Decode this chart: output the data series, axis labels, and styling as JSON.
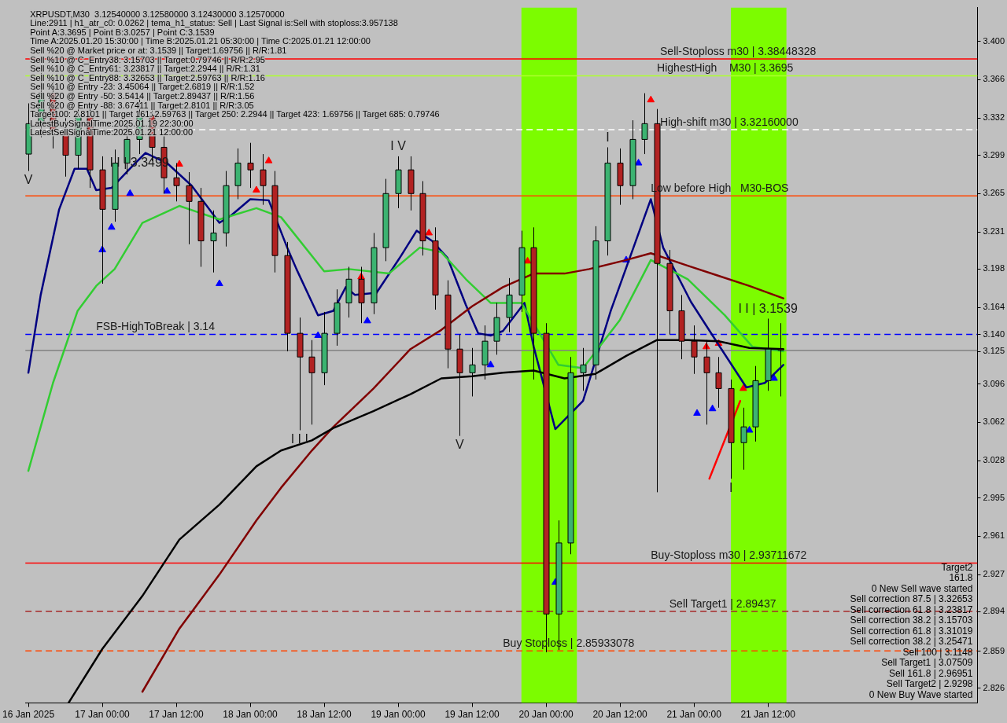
{
  "chart_data": {
    "type": "candlestick",
    "x": [
      "2025-01-16T12:00",
      "2025-01-16T14:00",
      "2025-01-16T16:00",
      "2025-01-16T18:00",
      "2025-01-16T20:00",
      "2025-01-16T22:00",
      "2025-01-17T00:00",
      "2025-01-17T02:00",
      "2025-01-17T04:00",
      "2025-01-17T06:00",
      "2025-01-17T08:00",
      "2025-01-17T10:00",
      "2025-01-17T12:00",
      "2025-01-17T14:00",
      "2025-01-17T16:00",
      "2025-01-17T18:00",
      "2025-01-17T20:00",
      "2025-01-17T22:00",
      "2025-01-18T00:00",
      "2025-01-18T02:00",
      "2025-01-18T04:00",
      "2025-01-18T06:00",
      "2025-01-18T08:00",
      "2025-01-18T10:00",
      "2025-01-18T12:00",
      "2025-01-18T14:00",
      "2025-01-18T16:00",
      "2025-01-18T18:00",
      "2025-01-18T20:00",
      "2025-01-18T22:00",
      "2025-01-19T00:00",
      "2025-01-19T02:00",
      "2025-01-19T04:00",
      "2025-01-19T06:00",
      "2025-01-19T08:00",
      "2025-01-19T10:00",
      "2025-01-19T12:00",
      "2025-01-19T14:00",
      "2025-01-19T16:00",
      "2025-01-19T18:00",
      "2025-01-19T20:00",
      "2025-01-19T22:00",
      "2025-01-20T00:00",
      "2025-01-20T02:00",
      "2025-01-20T04:00",
      "2025-01-20T06:00",
      "2025-01-20T08:00",
      "2025-01-20T10:00",
      "2025-01-20T12:00",
      "2025-01-20T14:00",
      "2025-01-20T16:00",
      "2025-01-20T18:00",
      "2025-01-20T20:00",
      "2025-01-20T22:00",
      "2025-01-21T00:00",
      "2025-01-21T02:00",
      "2025-01-21T04:00",
      "2025-01-21T06:00",
      "2025-01-21T08:00",
      "2025-01-21T10:00",
      "2025-01-21T12:00",
      "2025-01-21T14:00"
    ],
    "ohlc": [
      [
        3.3,
        3.345,
        3.285,
        3.327
      ],
      [
        3.327,
        3.372,
        3.315,
        3.354
      ],
      [
        3.354,
        3.366,
        3.305,
        3.32
      ],
      [
        3.32,
        3.332,
        3.28,
        3.299
      ],
      [
        3.299,
        3.346,
        3.287,
        3.334
      ],
      [
        3.334,
        3.345,
        3.27,
        3.286
      ],
      [
        3.286,
        3.298,
        3.185,
        3.251
      ],
      [
        3.251,
        3.304,
        3.24,
        3.292
      ],
      [
        3.292,
        3.326,
        3.282,
        3.313
      ],
      [
        3.313,
        3.35,
        3.3,
        3.334
      ],
      [
        3.334,
        3.346,
        3.294,
        3.306
      ],
      [
        3.306,
        3.318,
        3.265,
        3.279
      ],
      [
        3.279,
        3.292,
        3.258,
        3.272
      ],
      [
        3.272,
        3.284,
        3.22,
        3.258
      ],
      [
        3.258,
        3.27,
        3.2,
        3.223
      ],
      [
        3.223,
        3.25,
        3.195,
        3.23
      ],
      [
        3.23,
        3.285,
        3.218,
        3.272
      ],
      [
        3.272,
        3.305,
        3.26,
        3.292
      ],
      [
        3.292,
        3.31,
        3.27,
        3.286
      ],
      [
        3.286,
        3.3,
        3.255,
        3.272
      ],
      [
        3.272,
        3.285,
        3.195,
        3.21
      ],
      [
        3.21,
        3.222,
        3.125,
        3.141
      ],
      [
        3.141,
        3.155,
        3.055,
        3.12
      ],
      [
        3.12,
        3.135,
        3.06,
        3.106
      ],
      [
        3.106,
        3.16,
        3.095,
        3.141
      ],
      [
        3.141,
        3.18,
        3.13,
        3.168
      ],
      [
        3.168,
        3.2,
        3.155,
        3.189
      ],
      [
        3.189,
        3.2,
        3.15,
        3.168
      ],
      [
        3.168,
        3.23,
        3.158,
        3.217
      ],
      [
        3.217,
        3.278,
        3.205,
        3.265
      ],
      [
        3.265,
        3.298,
        3.252,
        3.286
      ],
      [
        3.286,
        3.298,
        3.25,
        3.265
      ],
      [
        3.265,
        3.276,
        3.21,
        3.223
      ],
      [
        3.223,
        3.235,
        3.162,
        3.175
      ],
      [
        3.175,
        3.188,
        3.11,
        3.127
      ],
      [
        3.127,
        3.14,
        3.05,
        3.106
      ],
      [
        3.106,
        3.128,
        3.085,
        3.113
      ],
      [
        3.113,
        3.148,
        3.1,
        3.134
      ],
      [
        3.134,
        3.168,
        3.122,
        3.155
      ],
      [
        3.155,
        3.19,
        3.142,
        3.175
      ],
      [
        3.175,
        3.232,
        3.16,
        3.217
      ],
      [
        3.217,
        3.235,
        3.1,
        3.141
      ],
      [
        3.141,
        3.15,
        2.858,
        2.892
      ],
      [
        2.892,
        2.975,
        2.86,
        2.955
      ],
      [
        2.955,
        3.12,
        2.945,
        3.106
      ],
      [
        3.106,
        3.128,
        3.09,
        3.113
      ],
      [
        3.113,
        3.236,
        3.1,
        3.223
      ],
      [
        3.223,
        3.306,
        3.21,
        3.292
      ],
      [
        3.292,
        3.305,
        3.255,
        3.272
      ],
      [
        3.272,
        3.33,
        3.26,
        3.313
      ],
      [
        3.313,
        3.354,
        3.3,
        3.327
      ],
      [
        3.327,
        3.34,
        3.0,
        3.203
      ],
      [
        3.203,
        3.215,
        3.14,
        3.161
      ],
      [
        3.161,
        3.175,
        3.118,
        3.134
      ],
      [
        3.134,
        3.148,
        3.105,
        3.12
      ],
      [
        3.12,
        3.135,
        3.06,
        3.106
      ],
      [
        3.106,
        3.12,
        3.075,
        3.092
      ],
      [
        3.092,
        3.1,
        3.012,
        3.044
      ],
      [
        3.044,
        3.075,
        3.02,
        3.058
      ],
      [
        3.058,
        3.112,
        3.045,
        3.099
      ],
      [
        3.099,
        3.154,
        3.09,
        3.127
      ],
      [
        3.127,
        3.15,
        3.085,
        3.126
      ]
    ],
    "colors": [
      "#3cb371",
      "#3cb371",
      "#b22222",
      "#b22222",
      "#3cb371",
      "#b22222",
      "#b22222",
      "#3cb371",
      "#3cb371",
      "#3cb371",
      "#b22222",
      "#b22222",
      "#b22222",
      "#b22222",
      "#b22222",
      "#3cb371",
      "#3cb371",
      "#3cb371",
      "#b22222",
      "#b22222",
      "#b22222",
      "#b22222",
      "#b22222",
      "#b22222",
      "#3cb371",
      "#3cb371",
      "#3cb371",
      "#b22222",
      "#3cb371",
      "#3cb371",
      "#3cb371",
      "#b22222",
      "#b22222",
      "#b22222",
      "#b22222",
      "#b22222",
      "#3cb371",
      "#3cb371",
      "#3cb371",
      "#3cb371",
      "#3cb371",
      "#b22222",
      "#b22222",
      "#3cb371",
      "#3cb371",
      "#3cb371",
      "#3cb371",
      "#3cb371",
      "#b22222",
      "#3cb371",
      "#3cb371",
      "#b22222",
      "#b22222",
      "#b22222",
      "#b22222",
      "#b22222",
      "#b22222",
      "#b22222",
      "#3cb371",
      "#3cb371",
      "#3cb371",
      "#b22222"
    ],
    "series": [
      {
        "type": "line",
        "color": "#000000",
        "x": [
          "2025-01-16T18:30",
          "2025-01-17T00:00",
          "2025-01-17T06:30",
          "2025-01-17T12:30",
          "2025-01-17T19:00",
          "2025-01-18T01:00",
          "2025-01-18T05:00",
          "2025-01-18T10:00",
          "2025-01-18T13:30",
          "2025-01-18T20:00",
          "2025-01-19T02:00",
          "2025-01-19T07:00",
          "2025-01-19T12:00",
          "2025-01-19T17:00",
          "2025-01-19T22:00",
          "2025-01-20T03:00",
          "2025-01-20T08:00",
          "2025-01-20T13:00",
          "2025-01-20T18:00",
          "2025-01-20T23:00",
          "2025-01-21T04:00",
          "2025-01-21T09:00",
          "2025-01-21T14:30"
        ],
        "values": [
          2.813,
          2.861,
          2.908,
          2.958,
          2.989,
          3.023,
          3.037,
          3.046,
          3.057,
          3.072,
          3.087,
          3.101,
          3.103,
          3.106,
          3.108,
          3.101,
          3.105,
          3.121,
          3.135,
          3.135,
          3.134,
          3.128,
          3.127
        ]
      },
      {
        "type": "line",
        "color": "#800000",
        "x": [
          "2025-01-17T06:30",
          "2025-01-17T12:30",
          "2025-01-17T19:00",
          "2025-01-18T01:00",
          "2025-01-18T05:00",
          "2025-01-18T10:00",
          "2025-01-18T13:30",
          "2025-01-18T20:00",
          "2025-01-19T02:00",
          "2025-01-19T07:00",
          "2025-01-19T12:00",
          "2025-01-19T17:00",
          "2025-01-19T22:00",
          "2025-01-20T03:00",
          "2025-01-20T07:00",
          "2025-01-20T13:00",
          "2025-01-20T17:00",
          "2025-01-20T23:00",
          "2025-01-21T04:00",
          "2025-01-21T09:00",
          "2025-01-21T14:30"
        ],
        "values": [
          2.823,
          2.879,
          2.927,
          2.975,
          3.004,
          3.037,
          3.058,
          3.092,
          3.127,
          3.144,
          3.165,
          3.182,
          3.194,
          3.194,
          3.198,
          3.206,
          3.212,
          3.201,
          3.192,
          3.183,
          3.172
        ]
      },
      {
        "type": "line",
        "color": "#32cd32",
        "x": [
          "2025-01-16T12:00",
          "2025-01-16T16:00",
          "2025-01-16T20:00",
          "2025-01-16T23:00",
          "2025-01-17T02:00",
          "2025-01-17T06:30",
          "2025-01-17T12:30",
          "2025-01-17T19:00",
          "2025-01-18T01:00",
          "2025-01-18T05:00",
          "2025-01-18T12:00",
          "2025-01-18T16:00",
          "2025-01-18T22:30",
          "2025-01-19T03:30",
          "2025-01-19T07:00",
          "2025-01-19T11:00",
          "2025-01-19T15:00",
          "2025-01-19T20:00",
          "2025-01-20T02:00",
          "2025-01-20T06:00",
          "2025-01-20T12:00",
          "2025-01-20T17:00",
          "2025-01-20T23:00",
          "2025-01-21T05:00",
          "2025-01-21T09:30",
          "2025-01-21T14:30"
        ],
        "values": [
          3.019,
          3.097,
          3.161,
          3.183,
          3.198,
          3.239,
          3.254,
          3.242,
          3.252,
          3.244,
          3.196,
          3.198,
          3.194,
          3.217,
          3.213,
          3.189,
          3.168,
          3.168,
          3.113,
          3.11,
          3.153,
          3.206,
          3.189,
          3.157,
          3.129,
          3.125
        ]
      },
      {
        "type": "line",
        "color": "#000080",
        "x": [
          "2025-01-16T12:00",
          "2025-01-16T14:00",
          "2025-01-16T17:00",
          "2025-01-16T19:30",
          "2025-01-16T21:30",
          "2025-01-16T23:00",
          "2025-01-17T01:30",
          "2025-01-17T05:00",
          "2025-01-17T07:00",
          "2025-01-17T10:30",
          "2025-01-17T14:30",
          "2025-01-17T19:00",
          "2025-01-17T21:00",
          "2025-01-18T00:00",
          "2025-01-18T03:00",
          "2025-01-18T06:00",
          "2025-01-18T07:30",
          "2025-01-18T11:00",
          "2025-01-18T13:30",
          "2025-01-18T15:30",
          "2025-01-18T17:00",
          "2025-01-18T20:30",
          "2025-01-19T00:30",
          "2025-01-19T03:00",
          "2025-01-19T05:30",
          "2025-01-19T08:00",
          "2025-01-19T11:00",
          "2025-01-19T13:00",
          "2025-01-19T15:00",
          "2025-01-19T17:00",
          "2025-01-19T20:30",
          "2025-01-19T22:00",
          "2025-01-20T01:30",
          "2025-01-20T06:00",
          "2025-01-20T10:30",
          "2025-01-20T17:00",
          "2025-01-20T19:00",
          "2025-01-20T23:30",
          "2025-01-21T03:30",
          "2025-01-21T08:30",
          "2025-01-21T11:30",
          "2025-01-21T14:30"
        ],
        "values": [
          3.106,
          3.175,
          3.251,
          3.287,
          3.287,
          3.268,
          3.27,
          3.29,
          3.301,
          3.292,
          3.272,
          3.239,
          3.246,
          3.26,
          3.259,
          3.217,
          3.198,
          3.157,
          3.161,
          3.182,
          3.175,
          3.177,
          3.21,
          3.232,
          3.223,
          3.208,
          3.166,
          3.141,
          3.139,
          3.143,
          3.168,
          3.129,
          3.056,
          3.081,
          3.161,
          3.26,
          3.217,
          3.169,
          3.135,
          3.093,
          3.097,
          3.113
        ]
      },
      {
        "type": "line",
        "color": "#ff0000",
        "x": [
          "2025-01-21T02:30",
          "2025-01-21T07:30"
        ],
        "values": [
          3.012,
          3.081
        ]
      },
      {
        "type": "scatter",
        "marker": "triangle",
        "color": "#0000ff",
        "x": [
          "2025-01-17T00:00",
          "2025-01-17T01:30",
          "2025-01-17T04:30",
          "2025-01-17T10:30",
          "2025-01-17T19:00",
          "2025-01-18T11:00",
          "2025-01-18T19:00",
          "2025-01-19T15:00",
          "2025-01-20T01:30",
          "2025-01-20T13:00",
          "2025-01-20T15:00",
          "2025-01-21T00:30",
          "2025-01-21T03:00",
          "2025-01-21T09:00",
          "2025-01-21T13:00"
        ],
        "values": [
          3.215,
          3.235,
          3.265,
          3.267,
          3.185,
          3.139,
          3.152,
          3.113,
          2.92,
          3.206,
          3.292,
          3.07,
          3.074,
          3.055,
          3.101
        ]
      },
      {
        "type": "scatter",
        "marker": "triangle",
        "color": "#ff0000",
        "x": [
          "2025-01-17T12:30",
          "2025-01-18T01:00",
          "2025-01-18T03:00",
          "2025-01-18T18:00",
          "2025-01-19T05:00",
          "2025-01-19T21:00",
          "2025-01-20T17:00",
          "2025-01-21T02:00",
          "2025-01-21T04:00",
          "2025-01-21T08:00"
        ],
        "values": [
          3.291,
          3.268,
          3.294,
          3.191,
          3.23,
          3.205,
          3.348,
          3.129,
          3.132,
          3.092
        ]
      }
    ],
    "xlim": [
      "2025-01-16T11:30",
      "2025-01-22T22:00"
    ],
    "xticks": [
      {
        "value": "2025-01-16T12:00",
        "label": "16 Jan 2025"
      },
      {
        "value": "2025-01-17T00:00",
        "label": "17 Jan 00:00"
      },
      {
        "value": "2025-01-17T12:00",
        "label": "17 Jan 12:00"
      },
      {
        "value": "2025-01-18T00:00",
        "label": "18 Jan 00:00"
      },
      {
        "value": "2025-01-18T12:00",
        "label": "18 Jan 12:00"
      },
      {
        "value": "2025-01-19T00:00",
        "label": "19 Jan 00:00"
      },
      {
        "value": "2025-01-19T12:00",
        "label": "19 Jan 12:00"
      },
      {
        "value": "2025-01-20T00:00",
        "label": "20 Jan 00:00"
      },
      {
        "value": "2025-01-20T12:00",
        "label": "20 Jan 12:00"
      },
      {
        "value": "2025-01-21T00:00",
        "label": "21 Jan 00:00"
      },
      {
        "value": "2025-01-21T12:00",
        "label": "21 Jan 12:00"
      }
    ],
    "ylim": [
      2.813,
      3.43
    ],
    "yticks": [
      {
        "value": 3.4,
        "label": "3.400"
      },
      3.366,
      3.332,
      3.299,
      3.265,
      3.231,
      3.198,
      3.164,
      {
        "value": 3.14,
        "label": "3.140"
      },
      3.125,
      3.096,
      3.062,
      3.028,
      2.995,
      2.961,
      2.927,
      2.894,
      2.859,
      2.826
    ],
    "bands": [
      {
        "axis": "x",
        "from": "2025-01-19T20:00",
        "to": "2025-01-20T05:00",
        "color": "#7cfc00"
      },
      {
        "axis": "x",
        "from": "2025-01-21T06:00",
        "to": "2025-01-21T15:00",
        "color": "#7cfc00"
      }
    ],
    "ref_lines": [
      {
        "axis": "y",
        "value": 3.38448328,
        "color": "#ff0000"
      },
      {
        "axis": "y",
        "value": 3.3695,
        "color": "#adff2f"
      },
      {
        "axis": "y",
        "value": 3.3216,
        "color": "#ffffff",
        "line_style": "dashed"
      },
      {
        "axis": "y",
        "value": 3.263,
        "color": "#ff4500"
      },
      {
        "axis": "y",
        "value": 3.14,
        "color": "#0000ff",
        "line_style": "dashed"
      },
      {
        "axis": "y",
        "value": 3.1257,
        "color": "#808080"
      },
      {
        "axis": "y",
        "value": 2.93711672,
        "color": "#ff0000"
      },
      {
        "axis": "y",
        "value": 2.89437,
        "color": "#a52a2a",
        "line_style": "dashed"
      },
      {
        "axis": "y",
        "value": 2.85933078,
        "color": "#ff4500",
        "line_style": "dashed"
      }
    ],
    "annotations": [
      "XRPUSDT,M30  3.12540000 3.12580000 3.12430000 3.12570000",
      "Line:2911 | h1_atr_c0: 0.0262 | tema_h1_status: Sell | Last Signal is:Sell with stoploss:3.957138",
      "Point A:3.3695 | Point B:3.0257 | Point C:3.1539",
      "Time A:2025.01.20 15:30:00 | Time B:2025.01.21 05:30:00 | Time C:2025.01.21 12:00:00",
      "Sell %20 @ Market price or at: 3.1539 || Target:1.69756 || R/R:1.81",
      "Sell %10 @ C_Entry38: 3.15703 || Target:0.79746 || R/R:2.95",
      "Sell %10 @ C_Entry61: 3.23817 || Target:2.2944 || R/R:1.31",
      "Sell %10 @ C_Entry88: 3.32653 || Target:2.59763 || R/R:1.16",
      "Sell %10 @ Entry -23: 3.45064 || Target:2.6819 || R/R:1.52",
      "Sell %20 @ Entry -50: 3.5414 || Target:2.89437 || R/R:1.56",
      "Sell %20 @ Entry -88: 3.67411 || Target:2.8101 || R/R:3.05",
      "Target100: 2.8101 || Target 161: 2.59763 || Target 250: 2.2944 || Target 423: 1.69756 || Target 685: 0.79746",
      "LatestBuySignalTime:2025.01.19 22:30:00",
      "LatestSellSignalTime:2025.01.21 12:00:00",
      "Target2",
      "161.8",
      "0 New Sell wave started",
      "Sell correction 87.5 | 3.32653",
      "Sell correction 61.8 | 3.23817",
      "Sell correction 38.2 | 3.15703",
      "Sell correction 61.8 | 3.31019",
      "Sell correction 38.2 | 3.25471",
      "Sell 100 | 3.1148",
      "Sell Target1 | 3.07509",
      "Sell 161.8 | 2.96951",
      "Sell Target2 | 2.9298",
      "0 New Buy Wave started",
      {
        "text": "Sell-Stoploss m30 | 3.38448328",
        "x": "2025-01-20T18:30",
        "y": 3.38448328
      },
      {
        "text": "HighestHigh    M30 | 3.3695",
        "x": "2025-01-20T18:00",
        "y": 3.3695
      },
      {
        "text": "High-shift m30 | 3.32160000",
        "x": "2025-01-20T18:30",
        "y": 3.3216
      },
      {
        "text": "Low before High   M30-BOS",
        "x": "2025-01-20T17:00",
        "y": 3.263
      },
      {
        "text": "FSB-HighToBreak | 3.14",
        "x": "2025-01-16T23:00",
        "y": 3.14
      },
      {
        "text": "Buy-Stoploss m30 | 2.93711672",
        "x": "2025-01-20T17:00",
        "y": 2.93711672
      },
      {
        "text": "Sell Target1 | 2.89437",
        "x": "2025-01-20T20:00",
        "y": 2.89437
      },
      {
        "text": "Buy Stoploss | 2.85933078",
        "x": "2025-01-19T17:00",
        "y": 2.85933078
      },
      {
        "text": "I V",
        "x": "2025-01-19T00:00",
        "y": 3.298
      },
      {
        "text": "I I I",
        "x": "2025-01-18T08:00",
        "y": 3.055
      },
      {
        "text": "V",
        "x": "2025-01-19T10:00",
        "y": 3.05
      },
      {
        "text": "I",
        "x": "2025-01-21T06:00",
        "y": 3.012
      },
      {
        "text": "I",
        "x": "2025-01-20T10:00",
        "y": 3.306
      },
      {
        "text": "V",
        "x": "2025-01-16T12:00",
        "y": 3.285
      },
      {
        "text": "I I | 3.3499",
        "x": "2025-01-17T06:00",
        "y": 3.3
      },
      {
        "text": "I I | 3.1539",
        "x": "2025-01-21T12:00",
        "y": 3.154
      }
    ],
    "legend": false
  }
}
